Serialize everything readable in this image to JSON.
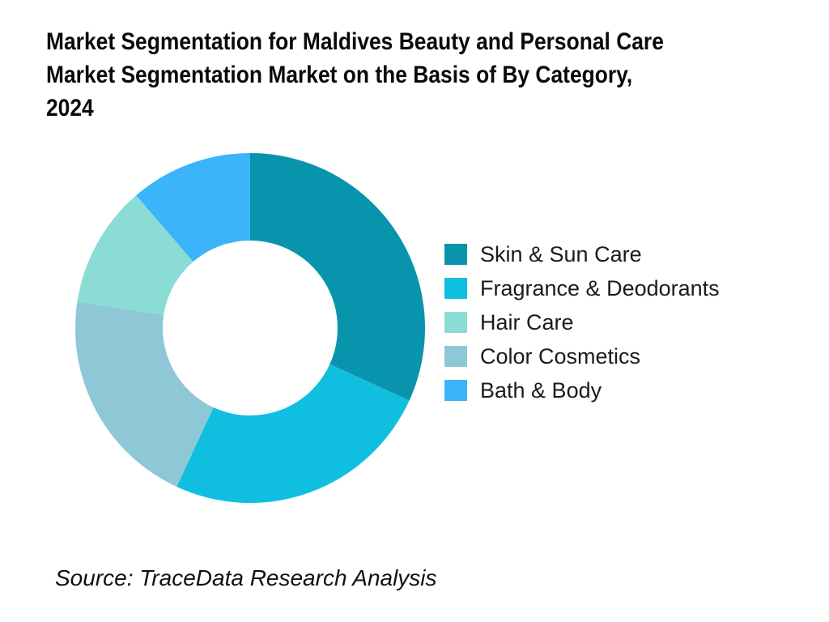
{
  "page": {
    "background_color": "#ffffff"
  },
  "header": {
    "title_lines": [
      "Market Segmentation for Maldives Beauty and Personal Care",
      "Market Segmentation Market on the Basis of By Category,",
      "2024"
    ]
  },
  "footer": {
    "source_text": "Source: TraceData Research Analysis"
  },
  "chart_data": {
    "type": "pie",
    "donut": true,
    "title": "Market Segmentation for Maldives Beauty and Personal Care Market Segmentation Market on the Basis of By Category, 2024",
    "values_unit": "percent",
    "values_estimated": true,
    "start_angle_deg": 0,
    "direction": "clockwise",
    "inner_radius_ratio": 0.5,
    "segments_clockwise_from_top": [
      {
        "label": "Skin & Sun Care",
        "value": 31.8,
        "color": "#0894AC"
      },
      {
        "label": "Fragrance & Deodorants",
        "value": 25.1,
        "color": "#10BFDF"
      },
      {
        "label": "Color Cosmetics",
        "value": 20.5,
        "color": "#8EC8D7"
      },
      {
        "label": "Hair Care",
        "value": 11.3,
        "color": "#8ADCD5"
      },
      {
        "label": "Bath & Body",
        "value": 11.3,
        "color": "#3BB4FA"
      }
    ],
    "legend": {
      "position": "right-middle",
      "items": [
        {
          "label": "Skin & Sun Care",
          "color": "#0894AC"
        },
        {
          "label": "Fragrance & Deodorants",
          "color": "#10BFDF"
        },
        {
          "label": "Hair Care",
          "color": "#8ADCD5"
        },
        {
          "label": "Color Cosmetics",
          "color": "#8EC8D7"
        },
        {
          "label": "Bath & Body",
          "color": "#3BB4FA"
        }
      ]
    }
  }
}
